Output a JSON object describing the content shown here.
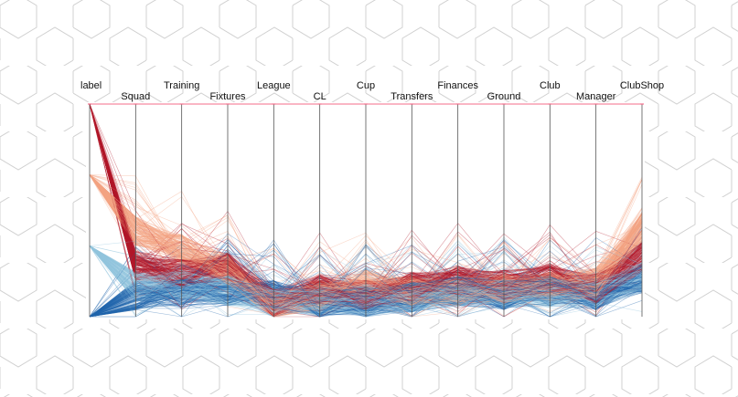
{
  "chart_data": {
    "type": "parallel-coordinates",
    "title": "",
    "dimensions": [
      {
        "name": "label",
        "range": [
          0,
          1
        ]
      },
      {
        "name": "Squad",
        "range": [
          0,
          1
        ]
      },
      {
        "name": "Training",
        "range": [
          0,
          1
        ]
      },
      {
        "name": "Fixtures",
        "range": [
          0,
          1
        ]
      },
      {
        "name": "League",
        "range": [
          0,
          1
        ]
      },
      {
        "name": "CL",
        "range": [
          0,
          1
        ]
      },
      {
        "name": "Cup",
        "range": [
          0,
          1
        ]
      },
      {
        "name": "Transfers",
        "range": [
          0,
          1
        ]
      },
      {
        "name": "Finances",
        "range": [
          0,
          1
        ]
      },
      {
        "name": "Ground",
        "range": [
          0,
          1
        ]
      },
      {
        "name": "Club",
        "range": [
          0,
          1
        ]
      },
      {
        "name": "Manager",
        "range": [
          0,
          1
        ]
      },
      {
        "name": "ClubShop",
        "range": [
          0,
          1
        ]
      }
    ],
    "groups": [
      {
        "label_value": 1.0,
        "color": "#b2182b"
      },
      {
        "label_value": 0.667,
        "color": "#f4a582"
      },
      {
        "label_value": 0.333,
        "color": "#92c5de"
      },
      {
        "label_value": 0.0,
        "color": "#2166ac"
      }
    ],
    "profiles": [
      {
        "group": 0,
        "values": [
          1.0,
          0.22,
          0.18,
          0.21,
          0.04,
          0.11,
          0.08,
          0.12,
          0.15,
          0.13,
          0.16,
          0.11,
          0.26
        ]
      },
      {
        "group": 1,
        "values": [
          0.667,
          0.38,
          0.3,
          0.2,
          0.03,
          0.08,
          0.13,
          0.1,
          0.1,
          0.11,
          0.12,
          0.14,
          0.4
        ]
      },
      {
        "group": 2,
        "values": [
          0.333,
          0.12,
          0.13,
          0.1,
          0.06,
          0.06,
          0.06,
          0.07,
          0.09,
          0.09,
          0.09,
          0.09,
          0.17
        ]
      },
      {
        "group": 3,
        "values": [
          0.0,
          0.08,
          0.09,
          0.1,
          0.08,
          0.04,
          0.05,
          0.07,
          0.1,
          0.08,
          0.1,
          0.08,
          0.16
        ]
      }
    ],
    "line_count": 600,
    "grid": false,
    "legend": "none"
  },
  "colors": {
    "axis_top": "#f46d8a",
    "axis_line": "#555555",
    "background_pattern": "#d0d0d0"
  }
}
